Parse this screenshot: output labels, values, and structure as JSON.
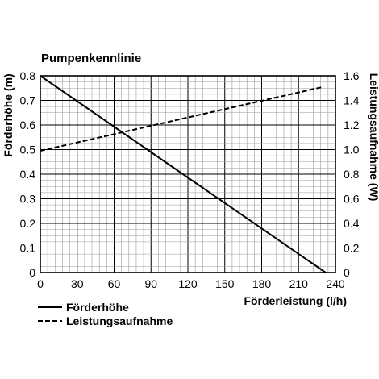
{
  "chart_data": {
    "type": "line",
    "title": "Pumpenkennlinie",
    "xlabel": "Förderleistung (l/h)",
    "ylabel_left": "Förderhöhe (m)",
    "ylabel_right": "Leistungsaufnahme (W)",
    "xlim": [
      0,
      240
    ],
    "ylim_left": [
      0,
      0.8
    ],
    "ylim_right": [
      0,
      1.6
    ],
    "x_ticks": [
      "0",
      "30",
      "60",
      "90",
      "120",
      "150",
      "180",
      "210",
      "240"
    ],
    "y_left_ticks": [
      "0",
      "0.1",
      "0.2",
      "0.3",
      "0.4",
      "0.5",
      "0.6",
      "0.7",
      "0.8"
    ],
    "y_right_ticks": [
      "0",
      "0.2",
      "0.4",
      "0.6",
      "0.8",
      "1.0",
      "1.2",
      "1.4",
      "1.6"
    ],
    "grid": true,
    "legend_position": "bottom-left",
    "series": [
      {
        "name": "Förderhöhe",
        "axis": "left",
        "style": "solid",
        "color": "#000000",
        "x": [
          0,
          232
        ],
        "y": [
          0.8,
          0
        ]
      },
      {
        "name": "Leistungsaufnahme",
        "axis": "right",
        "style": "dashed",
        "color": "#000000",
        "x": [
          0,
          230
        ],
        "y": [
          0.99,
          1.51
        ]
      }
    ]
  }
}
